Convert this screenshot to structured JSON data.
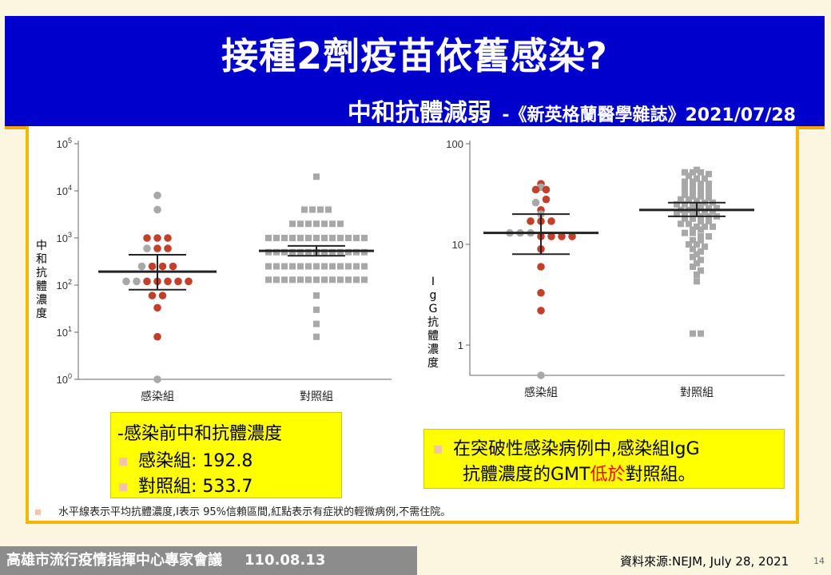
{
  "slide": {
    "title": "接種2劑疫苗依舊感染?",
    "subtitle": "中和抗體減弱",
    "citation": "-《新英格蘭醫學雜誌》2021/07/28",
    "note1": {
      "heading": "-感染前中和抗體濃度",
      "items": [
        {
          "label": "感染組",
          "value": ": 192.8"
        },
        {
          "label": "對照組",
          "value": ": 533.7"
        }
      ]
    },
    "note2": {
      "line1": "在突破性感染病例中,感染組IgG",
      "line2_pre": "抗體濃度的GMT",
      "line2_red": "低於",
      "line2_post": "對照組。"
    },
    "footnote": "水平線表示平均抗體濃度,I表示 95%信賴區間,紅點表示有症狀的輕微病例,不需住院。",
    "footer_org": "高雄市流行疫情指揮中心專家會議",
    "footer_date": "110.08.13",
    "source": "資料來源:NEJM, July 28, 2021",
    "page_number": "14",
    "colors": {
      "header_bg": "#0000cc",
      "accent": "#f2b800",
      "red_dot": "#c0402c",
      "gray_dot": "#a8a8a8",
      "note_bg": "#ffff00"
    }
  },
  "chart_data": [
    {
      "type": "scatter",
      "yscale": "log",
      "ylabel": "中和抗體濃度",
      "ylim": [
        1,
        100000
      ],
      "yticks": [
        {
          "value": 1,
          "base": "10",
          "exp": "0"
        },
        {
          "value": 10,
          "base": "10",
          "exp": "1"
        },
        {
          "value": 100,
          "base": "10",
          "exp": "2"
        },
        {
          "value": 1000,
          "base": "10",
          "exp": "3"
        },
        {
          "value": 10000,
          "base": "10",
          "exp": "4"
        },
        {
          "value": 100000,
          "base": "10",
          "exp": "5"
        }
      ],
      "categories": [
        "感染組",
        "對照組"
      ],
      "groups": [
        {
          "category": "感染組",
          "mean": 192.8,
          "ci": [
            80,
            440
          ],
          "symptomatic_red": [
            1000,
            1000,
            1000,
            600,
            600,
            250,
            250,
            250,
            120,
            120,
            120,
            120,
            120,
            60,
            60,
            33,
            8
          ],
          "gray": [
            8000,
            4000,
            600,
            250,
            120,
            120,
            1
          ]
        },
        {
          "category": "對照組",
          "mean": 533.7,
          "ci": [
            420,
            680
          ],
          "gray": [
            20000,
            4000,
            4000,
            4000,
            4000,
            2000,
            2000,
            2000,
            2000,
            2000,
            2000,
            2000,
            1000,
            1000,
            1000,
            1000,
            1000,
            1000,
            1000,
            1000,
            1000,
            1000,
            1000,
            1000,
            1000,
            500,
            500,
            500,
            500,
            500,
            500,
            500,
            500,
            500,
            500,
            500,
            500,
            500,
            250,
            250,
            250,
            250,
            250,
            250,
            250,
            250,
            250,
            250,
            250,
            250,
            250,
            130,
            130,
            130,
            130,
            130,
            130,
            130,
            130,
            130,
            130,
            130,
            130,
            130,
            60,
            30,
            15,
            8
          ]
        }
      ]
    },
    {
      "type": "scatter",
      "yscale": "log",
      "ylabel": "IgG抗體濃度",
      "ylim": [
        0.5,
        100
      ],
      "yticks": [
        {
          "value": 1,
          "label": "1"
        },
        {
          "value": 10,
          "label": "10"
        },
        {
          "value": 100,
          "label": "100"
        }
      ],
      "categories": [
        "感染組",
        "對照組"
      ],
      "groups": [
        {
          "category": "感染組",
          "mean": 13,
          "ci": [
            8,
            20
          ],
          "symptomatic_red": [
            40,
            35,
            35,
            28,
            22,
            17,
            17,
            17,
            12,
            12,
            12,
            12,
            9,
            6,
            3.3,
            2.2
          ],
          "gray": [
            37,
            26,
            20,
            13,
            13,
            13,
            0.5
          ]
        },
        {
          "category": "對照組",
          "mean": 22,
          "ci": [
            19,
            26
          ],
          "gray": [
            55,
            52,
            52,
            52,
            50,
            48,
            45,
            45,
            42,
            42,
            40,
            40,
            38,
            38,
            36,
            36,
            35,
            34,
            33,
            32,
            31,
            30,
            30,
            29,
            28,
            28,
            27,
            26,
            26,
            25,
            25,
            24,
            24,
            23,
            23,
            22,
            22,
            22,
            21,
            21,
            20,
            20,
            20,
            19,
            19,
            19,
            18,
            18,
            17,
            17,
            16,
            16,
            15,
            15,
            15,
            14,
            14,
            13,
            13,
            12,
            12,
            11,
            11,
            10,
            10,
            9.5,
            9,
            8.5,
            8,
            7.5,
            7,
            6.5,
            6,
            5.5,
            5,
            4.3,
            1.3,
            1.3
          ]
        }
      ]
    }
  ]
}
